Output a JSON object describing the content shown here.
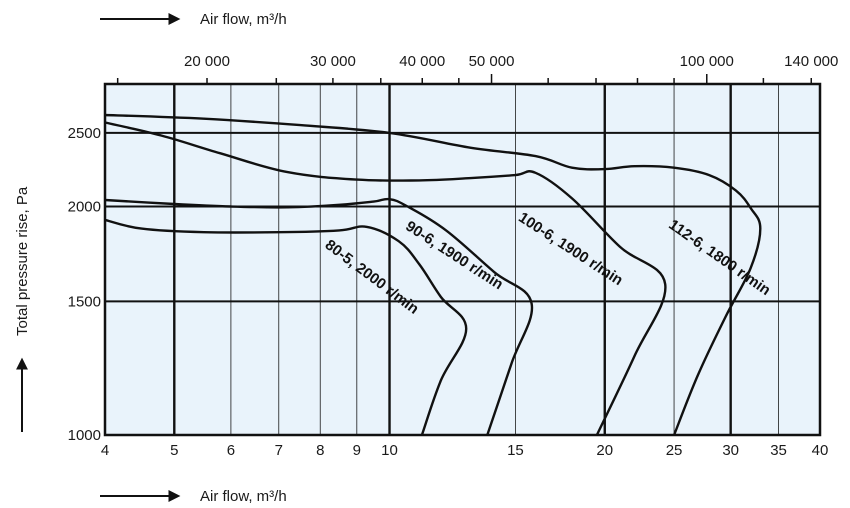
{
  "chart_data": {
    "type": "line",
    "top_axis_title": "Air flow, m³/h",
    "bottom_axis_title": "Air flow, m³/h",
    "ylabel": "Total pressure rise, Pa",
    "x_scale": "log",
    "y_scale": "log",
    "xlim": [
      4,
      40
    ],
    "ylim": [
      1000,
      2900
    ],
    "x_ticks": [
      4,
      5,
      6,
      7,
      8,
      9,
      10,
      15,
      20,
      25,
      30,
      35,
      40
    ],
    "x_tick_labels": [
      "4",
      "5",
      "6",
      "7",
      "8",
      "9",
      "10",
      "15",
      "20",
      "25",
      "30",
      "35",
      "40"
    ],
    "top_ticks": [
      20000,
      30000,
      40000,
      50000,
      100000,
      140000
    ],
    "top_tick_labels": [
      "20 000",
      "30 000",
      "40 000",
      "50 000",
      "100 000",
      "140 000"
    ],
    "y_ticks": [
      1000,
      1500,
      2000,
      2500
    ],
    "y_tick_labels": [
      "1000",
      "1500",
      "2000",
      "2500"
    ],
    "grid": true,
    "series": [
      {
        "name": "80-5, 2000 r/min",
        "points": [
          [
            4,
            1920
          ],
          [
            4.5,
            1870
          ],
          [
            5.5,
            1850
          ],
          [
            7,
            1850
          ],
          [
            8.5,
            1860
          ],
          [
            9.3,
            1880
          ],
          [
            10.3,
            1800
          ],
          [
            11,
            1680
          ],
          [
            11.8,
            1520
          ],
          [
            12.8,
            1380
          ],
          [
            11.8,
            1180
          ],
          [
            11.1,
            1000
          ]
        ]
      },
      {
        "name": "90-6, 1900 r/min",
        "points": [
          [
            4,
            2040
          ],
          [
            5,
            2015
          ],
          [
            6,
            2000
          ],
          [
            7.2,
            1995
          ],
          [
            8.5,
            2010
          ],
          [
            9.5,
            2030
          ],
          [
            10,
            2045
          ],
          [
            10.6,
            2000
          ],
          [
            12,
            1860
          ],
          [
            14,
            1640
          ],
          [
            15.8,
            1490
          ],
          [
            14.8,
            1240
          ],
          [
            13.7,
            1000
          ]
        ]
      },
      {
        "name": "100-6, 1900 r/min",
        "points": [
          [
            4,
            2580
          ],
          [
            4.8,
            2480
          ],
          [
            5.8,
            2350
          ],
          [
            7.2,
            2220
          ],
          [
            9,
            2170
          ],
          [
            11,
            2165
          ],
          [
            13,
            2180
          ],
          [
            15,
            2200
          ],
          [
            16,
            2215
          ],
          [
            18,
            2050
          ],
          [
            21,
            1770
          ],
          [
            24.3,
            1580
          ],
          [
            22,
            1270
          ],
          [
            19.5,
            1000
          ]
        ]
      },
      {
        "name": "112-6, 1800 r/min",
        "points": [
          [
            4,
            2640
          ],
          [
            5.5,
            2610
          ],
          [
            7.5,
            2560
          ],
          [
            10,
            2500
          ],
          [
            13,
            2390
          ],
          [
            16,
            2330
          ],
          [
            18,
            2250
          ],
          [
            20,
            2240
          ],
          [
            22,
            2260
          ],
          [
            25,
            2250
          ],
          [
            28,
            2200
          ],
          [
            30.5,
            2100
          ],
          [
            32,
            1990
          ],
          [
            33,
            1870
          ],
          [
            32,
            1660
          ],
          [
            29.5,
            1430
          ],
          [
            27,
            1200
          ],
          [
            25,
            1000
          ]
        ]
      }
    ],
    "curve_labels": [
      {
        "text": "80-5, 2000 r/min",
        "x": 8.1,
        "y": 1770,
        "angle": 37
      },
      {
        "text": "90-6, 1900 r/min",
        "x": 10.5,
        "y": 1870,
        "angle": 33
      },
      {
        "text": "100-6, 1900 r/min",
        "x": 15.1,
        "y": 1920,
        "angle": 33
      },
      {
        "text": "112-6, 1800 r/min",
        "x": 24.5,
        "y": 1880,
        "angle": 35
      }
    ]
  },
  "colors": {
    "plot_background": "#e9f3fb",
    "grid_minor": "#1a1a1a",
    "grid_major": "#111111",
    "curve": "#111111"
  }
}
